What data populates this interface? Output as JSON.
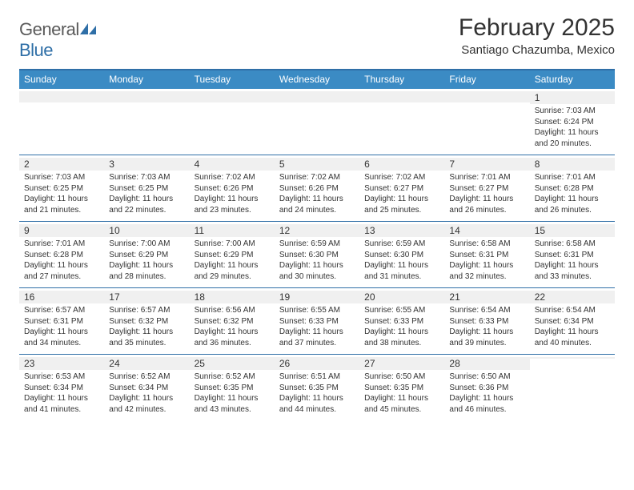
{
  "logo": {
    "text1": "General",
    "text2": "Blue"
  },
  "title": "February 2025",
  "location": "Santiago Chazumba, Mexico",
  "colors": {
    "header_bar": "#3b8bc4",
    "border": "#2f6fa7",
    "band": "#f0f0f0",
    "text": "#333333",
    "bg": "#ffffff"
  },
  "weekdays": [
    "Sunday",
    "Monday",
    "Tuesday",
    "Wednesday",
    "Thursday",
    "Friday",
    "Saturday"
  ],
  "weeks": [
    [
      null,
      null,
      null,
      null,
      null,
      null,
      {
        "n": "1",
        "sr": "7:03 AM",
        "ss": "6:24 PM",
        "dl": "11 hours and 20 minutes."
      }
    ],
    [
      {
        "n": "2",
        "sr": "7:03 AM",
        "ss": "6:25 PM",
        "dl": "11 hours and 21 minutes."
      },
      {
        "n": "3",
        "sr": "7:03 AM",
        "ss": "6:25 PM",
        "dl": "11 hours and 22 minutes."
      },
      {
        "n": "4",
        "sr": "7:02 AM",
        "ss": "6:26 PM",
        "dl": "11 hours and 23 minutes."
      },
      {
        "n": "5",
        "sr": "7:02 AM",
        "ss": "6:26 PM",
        "dl": "11 hours and 24 minutes."
      },
      {
        "n": "6",
        "sr": "7:02 AM",
        "ss": "6:27 PM",
        "dl": "11 hours and 25 minutes."
      },
      {
        "n": "7",
        "sr": "7:01 AM",
        "ss": "6:27 PM",
        "dl": "11 hours and 26 minutes."
      },
      {
        "n": "8",
        "sr": "7:01 AM",
        "ss": "6:28 PM",
        "dl": "11 hours and 26 minutes."
      }
    ],
    [
      {
        "n": "9",
        "sr": "7:01 AM",
        "ss": "6:28 PM",
        "dl": "11 hours and 27 minutes."
      },
      {
        "n": "10",
        "sr": "7:00 AM",
        "ss": "6:29 PM",
        "dl": "11 hours and 28 minutes."
      },
      {
        "n": "11",
        "sr": "7:00 AM",
        "ss": "6:29 PM",
        "dl": "11 hours and 29 minutes."
      },
      {
        "n": "12",
        "sr": "6:59 AM",
        "ss": "6:30 PM",
        "dl": "11 hours and 30 minutes."
      },
      {
        "n": "13",
        "sr": "6:59 AM",
        "ss": "6:30 PM",
        "dl": "11 hours and 31 minutes."
      },
      {
        "n": "14",
        "sr": "6:58 AM",
        "ss": "6:31 PM",
        "dl": "11 hours and 32 minutes."
      },
      {
        "n": "15",
        "sr": "6:58 AM",
        "ss": "6:31 PM",
        "dl": "11 hours and 33 minutes."
      }
    ],
    [
      {
        "n": "16",
        "sr": "6:57 AM",
        "ss": "6:31 PM",
        "dl": "11 hours and 34 minutes."
      },
      {
        "n": "17",
        "sr": "6:57 AM",
        "ss": "6:32 PM",
        "dl": "11 hours and 35 minutes."
      },
      {
        "n": "18",
        "sr": "6:56 AM",
        "ss": "6:32 PM",
        "dl": "11 hours and 36 minutes."
      },
      {
        "n": "19",
        "sr": "6:55 AM",
        "ss": "6:33 PM",
        "dl": "11 hours and 37 minutes."
      },
      {
        "n": "20",
        "sr": "6:55 AM",
        "ss": "6:33 PM",
        "dl": "11 hours and 38 minutes."
      },
      {
        "n": "21",
        "sr": "6:54 AM",
        "ss": "6:33 PM",
        "dl": "11 hours and 39 minutes."
      },
      {
        "n": "22",
        "sr": "6:54 AM",
        "ss": "6:34 PM",
        "dl": "11 hours and 40 minutes."
      }
    ],
    [
      {
        "n": "23",
        "sr": "6:53 AM",
        "ss": "6:34 PM",
        "dl": "11 hours and 41 minutes."
      },
      {
        "n": "24",
        "sr": "6:52 AM",
        "ss": "6:34 PM",
        "dl": "11 hours and 42 minutes."
      },
      {
        "n": "25",
        "sr": "6:52 AM",
        "ss": "6:35 PM",
        "dl": "11 hours and 43 minutes."
      },
      {
        "n": "26",
        "sr": "6:51 AM",
        "ss": "6:35 PM",
        "dl": "11 hours and 44 minutes."
      },
      {
        "n": "27",
        "sr": "6:50 AM",
        "ss": "6:35 PM",
        "dl": "11 hours and 45 minutes."
      },
      {
        "n": "28",
        "sr": "6:50 AM",
        "ss": "6:36 PM",
        "dl": "11 hours and 46 minutes."
      },
      null
    ]
  ],
  "labels": {
    "sunrise": "Sunrise:",
    "sunset": "Sunset:",
    "daylight": "Daylight:"
  }
}
